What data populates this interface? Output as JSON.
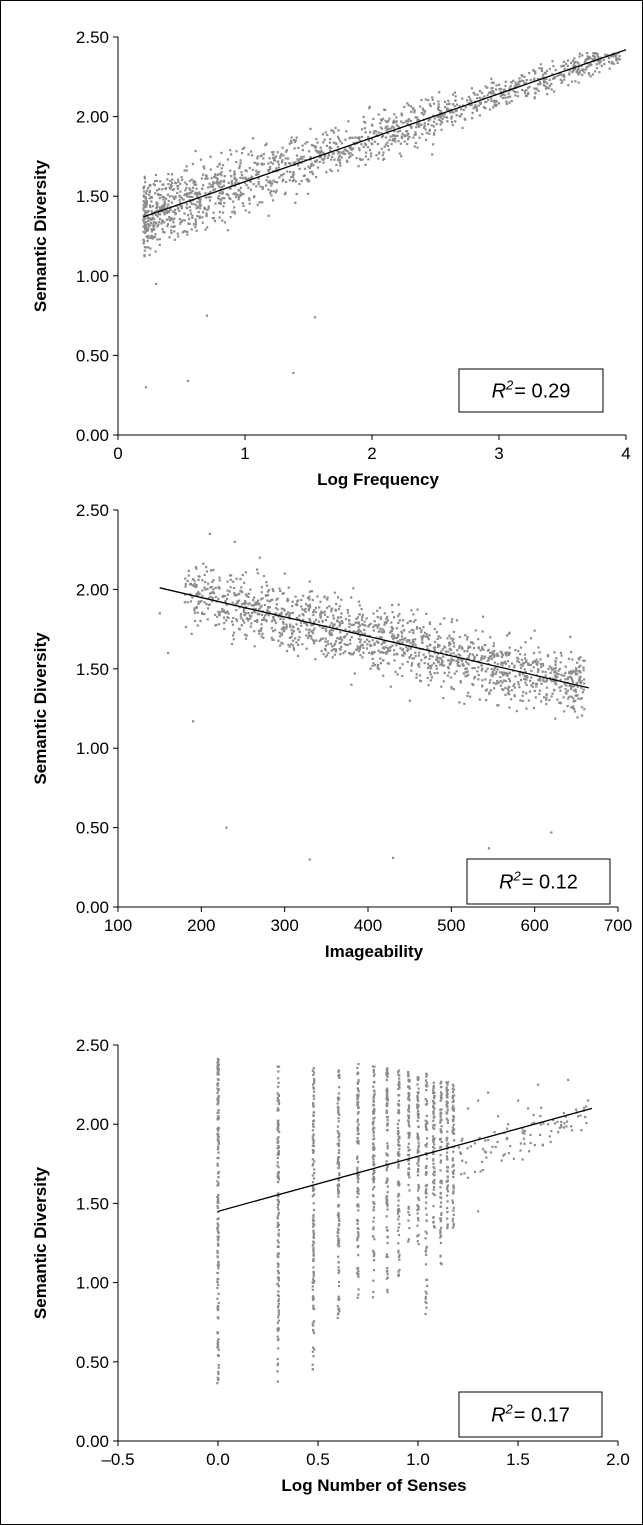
{
  "colors": {
    "points": "#8c8c8c",
    "trendline": "#000000",
    "axis": "#000000",
    "background": "#ffffff"
  },
  "chart_data": [
    {
      "type": "scatter",
      "title": "",
      "xlabel": "Log Frequency",
      "ylabel": "Semantic Diversity",
      "xlim": [
        0,
        4
      ],
      "ylim": [
        0,
        2.5
      ],
      "x_ticks": [
        "0",
        "1",
        "2",
        "3",
        "4"
      ],
      "y_ticks": [
        "0.00",
        "0.50",
        "1.00",
        "1.50",
        "2.00",
        "2.50"
      ],
      "grid": false,
      "legend": "none",
      "annotation": {
        "label": "R",
        "superscript": "2",
        "value": "= 0.29"
      },
      "trendline": {
        "x": [
          0.2,
          4.0
        ],
        "y": [
          1.37,
          2.42
        ]
      },
      "points": [
        [
          0.2,
          1.55
        ],
        [
          0.35,
          1.42
        ],
        [
          0.5,
          1.62
        ],
        [
          0.65,
          1.48
        ],
        [
          0.8,
          1.7
        ],
        [
          0.95,
          1.58
        ],
        [
          1.1,
          1.75
        ],
        [
          1.25,
          1.66
        ],
        [
          1.4,
          1.85
        ],
        [
          1.55,
          1.72
        ],
        [
          1.7,
          1.9
        ],
        [
          1.85,
          1.8
        ],
        [
          2.0,
          1.95
        ],
        [
          2.2,
          1.88
        ],
        [
          2.4,
          2.05
        ],
        [
          2.6,
          2.1
        ],
        [
          2.8,
          2.15
        ],
        [
          3.0,
          2.2
        ],
        [
          3.2,
          2.25
        ],
        [
          3.4,
          2.3
        ],
        [
          3.6,
          2.32
        ],
        [
          3.8,
          2.37
        ],
        [
          3.95,
          2.36
        ],
        [
          0.22,
          0.3
        ],
        [
          0.55,
          0.34
        ],
        [
          1.38,
          0.39
        ],
        [
          0.3,
          0.95
        ],
        [
          0.7,
          0.75
        ],
        [
          1.55,
          0.74
        ]
      ]
    },
    {
      "type": "scatter",
      "title": "",
      "xlabel": "Imageability",
      "ylabel": "Semantic Diversity",
      "xlim": [
        100,
        700
      ],
      "ylim": [
        0,
        2.5
      ],
      "x_ticks": [
        "100",
        "200",
        "300",
        "400",
        "500",
        "600",
        "700"
      ],
      "y_ticks": [
        "0.00",
        "0.50",
        "1.00",
        "1.50",
        "2.00",
        "2.50"
      ],
      "grid": false,
      "legend": "none",
      "annotation": {
        "label": "R",
        "superscript": "2",
        "value": "= 0.12"
      },
      "trendline": {
        "x": [
          150,
          665
        ],
        "y": [
          2.01,
          1.38
        ]
      },
      "points": [
        [
          210,
          2.35
        ],
        [
          240,
          2.3
        ],
        [
          270,
          2.2
        ],
        [
          300,
          2.1
        ],
        [
          330,
          2.05
        ],
        [
          360,
          1.98
        ],
        [
          390,
          1.9
        ],
        [
          420,
          1.85
        ],
        [
          450,
          1.8
        ],
        [
          480,
          1.75
        ],
        [
          510,
          1.7
        ],
        [
          540,
          1.65
        ],
        [
          570,
          1.6
        ],
        [
          600,
          1.55
        ],
        [
          630,
          1.5
        ],
        [
          655,
          1.45
        ],
        [
          380,
          1.4
        ],
        [
          450,
          1.3
        ],
        [
          520,
          1.35
        ],
        [
          590,
          1.25
        ],
        [
          330,
          0.3
        ],
        [
          430,
          0.31
        ],
        [
          545,
          0.37
        ],
        [
          230,
          0.5
        ],
        [
          620,
          0.47
        ],
        [
          160,
          1.6
        ],
        [
          190,
          1.17
        ],
        [
          150,
          1.85
        ]
      ]
    },
    {
      "type": "scatter",
      "title": "",
      "xlabel": "Log Number of Senses",
      "ylabel": "Semantic Diversity",
      "xlim": [
        -0.5,
        2.0
      ],
      "ylim": [
        0,
        2.5
      ],
      "x_ticks": [
        "–0.5",
        "0.0",
        "0.5",
        "1.0",
        "1.5",
        "2.0"
      ],
      "y_ticks": [
        "0.00",
        "0.50",
        "1.00",
        "1.50",
        "2.00",
        "2.50"
      ],
      "grid": false,
      "legend": "none",
      "annotation": {
        "label": "R",
        "superscript": "2",
        "value": "= 0.17"
      },
      "trendline": {
        "x": [
          0.0,
          1.87
        ],
        "y": [
          1.45,
          2.1
        ]
      },
      "columns": [
        {
          "x": 0.0,
          "min": 0.3,
          "max": 2.42
        },
        {
          "x": 0.301,
          "min": 0.31,
          "max": 2.38
        },
        {
          "x": 0.477,
          "min": 0.37,
          "max": 2.37
        },
        {
          "x": 0.602,
          "min": 0.68,
          "max": 2.35
        },
        {
          "x": 0.699,
          "min": 0.83,
          "max": 2.38
        },
        {
          "x": 0.778,
          "min": 0.77,
          "max": 2.38
        },
        {
          "x": 0.845,
          "min": 0.85,
          "max": 2.36
        },
        {
          "x": 0.903,
          "min": 1.02,
          "max": 2.36
        },
        {
          "x": 0.954,
          "min": 1.1,
          "max": 2.33
        },
        {
          "x": 1.0,
          "min": 1.2,
          "max": 2.3
        },
        {
          "x": 1.041,
          "min": 0.8,
          "max": 2.32
        },
        {
          "x": 1.079,
          "min": 1.3,
          "max": 2.28
        },
        {
          "x": 1.114,
          "min": 1.02,
          "max": 2.28
        },
        {
          "x": 1.146,
          "min": 1.3,
          "max": 2.27
        },
        {
          "x": 1.176,
          "min": 1.3,
          "max": 2.25
        }
      ],
      "points": [
        [
          1.25,
          2.1
        ],
        [
          1.3,
          2.15
        ],
        [
          1.35,
          2.2
        ],
        [
          1.4,
          2.05
        ],
        [
          1.45,
          2.0
        ],
        [
          1.5,
          2.15
        ],
        [
          1.55,
          2.1
        ],
        [
          1.6,
          2.25
        ],
        [
          1.65,
          2.0
        ],
        [
          1.7,
          1.95
        ],
        [
          1.75,
          2.28
        ],
        [
          1.8,
          2.05
        ],
        [
          1.85,
          2.15
        ],
        [
          1.3,
          1.45
        ],
        [
          1.35,
          1.9
        ]
      ]
    }
  ]
}
